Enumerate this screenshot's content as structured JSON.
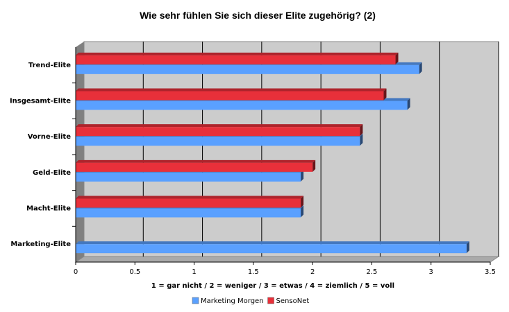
{
  "chart_data": {
    "type": "bar",
    "orientation": "horizontal",
    "title": "Wie sehr fühlen Sie sich dieser Elite zugehörig? (2)",
    "xlabel": "1 = gar nicht / 2 = weniger / 3 = etwas / 4 = ziemlich / 5 = voll",
    "ylabel": "",
    "categories": [
      "Trend-Elite",
      "Insgesamt-Elite",
      "Vorne-Elite",
      "Geld-Elite",
      "Macht-Elite",
      "Marketing-Elite"
    ],
    "series": [
      {
        "name": "Marketing Morgen",
        "color": "#5aa0ff",
        "values": [
          2.9,
          2.8,
          2.4,
          1.9,
          1.9,
          3.3
        ]
      },
      {
        "name": "SensoNet",
        "color": "#e8303a",
        "values": [
          2.7,
          2.6,
          2.4,
          2.0,
          1.9,
          null
        ]
      }
    ],
    "xlim": [
      0,
      3.5
    ],
    "xticks": [
      "0",
      "0.5",
      "1",
      "1.5",
      "2",
      "2.5",
      "3",
      "3.5"
    ],
    "grid": true,
    "legend": "bottom"
  }
}
